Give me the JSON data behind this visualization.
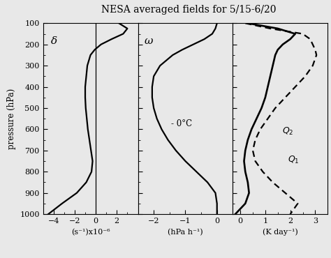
{
  "title": "NESA averaged fields for 5/15-6/20",
  "pressure_levels": [
    100,
    125,
    150,
    175,
    200,
    225,
    250,
    300,
    350,
    400,
    450,
    500,
    550,
    600,
    650,
    700,
    750,
    800,
    850,
    900,
    950,
    1000
  ],
  "delta_profile": [
    2.2,
    3.0,
    2.6,
    1.5,
    0.5,
    -0.1,
    -0.5,
    -0.8,
    -0.9,
    -1.0,
    -1.0,
    -0.95,
    -0.85,
    -0.75,
    -0.6,
    -0.45,
    -0.3,
    -0.4,
    -0.9,
    -1.8,
    -3.2,
    -4.5
  ],
  "omega_profile": [
    0.0,
    -0.05,
    -0.15,
    -0.4,
    -0.75,
    -1.1,
    -1.4,
    -1.8,
    -2.0,
    -2.05,
    -2.05,
    -2.0,
    -1.9,
    -1.75,
    -1.55,
    -1.3,
    -1.0,
    -0.65,
    -0.3,
    -0.05,
    0.0,
    0.0
  ],
  "Q1_profile": [
    0.3,
    1.5,
    2.2,
    2.0,
    1.7,
    1.5,
    1.4,
    1.3,
    1.2,
    1.1,
    1.0,
    0.85,
    0.65,
    0.45,
    0.3,
    0.2,
    0.15,
    0.2,
    0.3,
    0.35,
    0.2,
    -0.2
  ],
  "Q2_profile": [
    0.2,
    1.2,
    2.5,
    2.8,
    2.9,
    3.0,
    3.05,
    2.9,
    2.6,
    2.2,
    1.8,
    1.4,
    1.1,
    0.8,
    0.6,
    0.5,
    0.6,
    0.9,
    1.3,
    1.8,
    2.3,
    2.0
  ],
  "delta_xlim": [
    -5,
    4
  ],
  "delta_xticks": [
    -4,
    -2,
    0,
    2
  ],
  "omega_xlim": [
    -2.5,
    0.5
  ],
  "omega_xticks": [
    -2.0,
    -1.0,
    0.0
  ],
  "Q_xlim": [
    -0.3,
    3.5
  ],
  "Q_xticks": [
    0,
    1,
    2,
    3
  ],
  "ylim": [
    1000,
    100
  ],
  "yticks": [
    100,
    200,
    300,
    400,
    500,
    600,
    700,
    800,
    900,
    1000
  ],
  "ylabel": "pressure (hPa)",
  "xlabel1": "(s⁻¹)x10⁻⁶",
  "xlabel2": "(hPa h⁻¹)",
  "xlabel3": "(K day⁻¹)",
  "label_delta": "δ",
  "label_omega": "ω",
  "label_Q1": "Q",
  "label_Q1_sub": "1",
  "label_Q2": "Q",
  "label_Q2_sub": "2",
  "annotation_omega": "- 0°C",
  "line_color": "#000000",
  "background_color": "#e8e8e8",
  "title_fontsize": 10
}
